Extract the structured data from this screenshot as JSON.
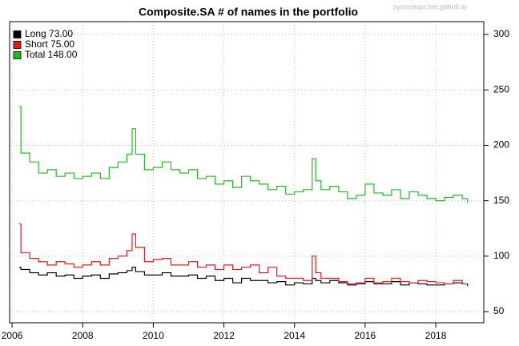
{
  "chart_data": {
    "type": "line",
    "step": true,
    "title": "Composite.SA # of names in the portfolio",
    "watermark": "sysresearcher.github.io",
    "x": [
      2006.2,
      2006.25,
      2006.5,
      2006.75,
      2007,
      2007.25,
      2007.5,
      2007.75,
      2008,
      2008.25,
      2008.5,
      2008.75,
      2009,
      2009.25,
      2009.4,
      2009.5,
      2009.75,
      2010,
      2010.25,
      2010.5,
      2010.75,
      2011,
      2011.25,
      2011.5,
      2011.75,
      2012,
      2012.25,
      2012.5,
      2012.75,
      2013,
      2013.25,
      2013.5,
      2013.75,
      2014,
      2014.25,
      2014.5,
      2014.6,
      2014.75,
      2015,
      2015.25,
      2015.5,
      2015.75,
      2016,
      2016.25,
      2016.5,
      2016.75,
      2017,
      2017.25,
      2017.5,
      2017.75,
      2018,
      2018.25,
      2018.5,
      2018.75,
      2018.9
    ],
    "series": [
      {
        "name": "Long  73.00",
        "color": "#000000",
        "values": [
          90,
          88,
          85,
          83,
          85,
          82,
          83,
          80,
          82,
          83,
          80,
          84,
          85,
          87,
          90,
          86,
          83,
          83,
          85,
          82,
          82,
          83,
          80,
          82,
          78,
          80,
          76,
          80,
          78,
          78,
          76,
          77,
          74,
          76,
          75,
          80,
          78,
          76,
          78,
          76,
          74,
          75,
          77,
          75,
          75,
          77,
          74,
          76,
          75,
          74,
          74,
          75,
          76,
          75,
          73
        ]
      },
      {
        "name": "Short  75.00",
        "color": "#e31a1c",
        "values": [
          129,
          103,
          98,
          95,
          92,
          95,
          93,
          90,
          92,
          95,
          92,
          98,
          100,
          105,
          120,
          108,
          95,
          97,
          98,
          92,
          92,
          95,
          90,
          92,
          88,
          92,
          88,
          90,
          92,
          85,
          90,
          82,
          80,
          80,
          78,
          100,
          85,
          80,
          80,
          77,
          75,
          76,
          80,
          76,
          77,
          80,
          77,
          76,
          78,
          77,
          76,
          75,
          78,
          75,
          75
        ]
      },
      {
        "name": "Total 148.00",
        "color": "#22bb22",
        "values": [
          235,
          193,
          185,
          175,
          178,
          172,
          175,
          170,
          172,
          175,
          170,
          180,
          185,
          192,
          215,
          192,
          178,
          180,
          185,
          178,
          175,
          178,
          170,
          172,
          165,
          168,
          162,
          172,
          168,
          165,
          160,
          163,
          156,
          158,
          160,
          188,
          168,
          160,
          163,
          158,
          152,
          155,
          165,
          157,
          155,
          160,
          152,
          158,
          155,
          152,
          150,
          153,
          155,
          152,
          148
        ]
      }
    ],
    "xlim": [
      2005.93,
      2019.36
    ],
    "ylim": [
      39.9,
      311.6
    ],
    "xticks": [
      2006,
      2008,
      2010,
      2012,
      2014,
      2016,
      2018
    ],
    "yticks": [
      50,
      100,
      150,
      200,
      250,
      300
    ],
    "grid": true,
    "legend": "top-left"
  }
}
